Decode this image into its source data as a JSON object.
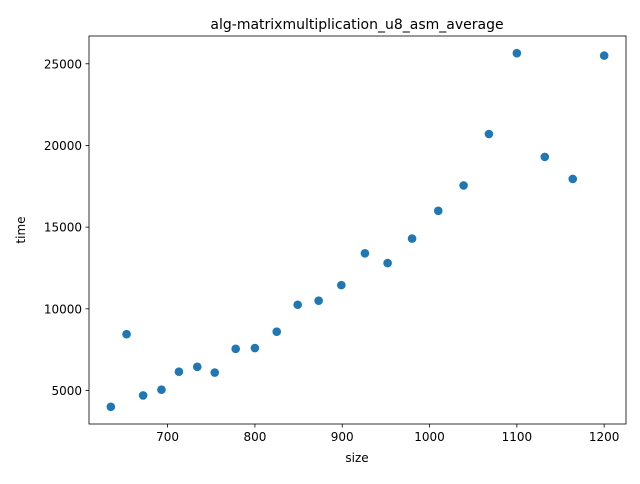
{
  "chart_data": {
    "type": "scatter",
    "title": "alg-matrixmultiplication_u8_asm_average",
    "xlabel": "size",
    "ylabel": "time",
    "xlim": [
      610,
      1225
    ],
    "ylim": [
      2950,
      26700
    ],
    "x_ticks": [
      700,
      800,
      900,
      1000,
      1100,
      1200
    ],
    "x_tick_labels": [
      "700",
      "800",
      "900",
      "1000",
      "1100",
      "1200"
    ],
    "y_ticks": [
      5000,
      10000,
      15000,
      20000,
      25000
    ],
    "y_tick_labels": [
      "5000",
      "10000",
      "15000",
      "20000",
      "25000"
    ],
    "grid": false,
    "marker_color": "#1f77b4",
    "series": [
      {
        "x": [
          635,
          653,
          672,
          693,
          713,
          734,
          754,
          778,
          800,
          825,
          849,
          873,
          899,
          926,
          952,
          980,
          1010,
          1039,
          1068,
          1100,
          1132,
          1164,
          1200
        ],
        "y": [
          4000,
          8450,
          4700,
          5050,
          6150,
          6450,
          6100,
          7550,
          7600,
          8600,
          10250,
          10500,
          11450,
          13400,
          12800,
          14300,
          16000,
          17550,
          20700,
          25650,
          19300,
          17950,
          25500
        ]
      }
    ]
  }
}
